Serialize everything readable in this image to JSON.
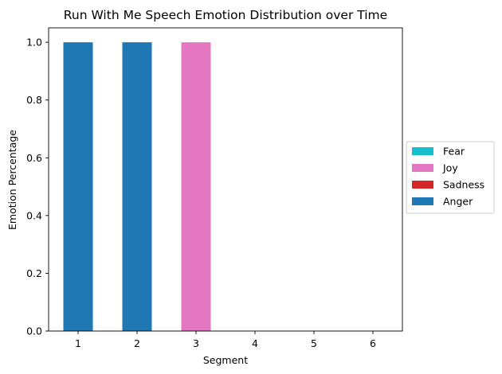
{
  "chart_data": {
    "type": "bar",
    "stacked": true,
    "title": "Run With Me Speech Emotion Distribution over Time",
    "xlabel": "Segment",
    "ylabel": "Emotion Percentage",
    "categories": [
      "1",
      "2",
      "3",
      "4",
      "5",
      "6"
    ],
    "ylim": [
      0,
      1.05
    ],
    "yticks": [
      "0.0",
      "0.2",
      "0.4",
      "0.6",
      "0.8",
      "1.0"
    ],
    "grid": false,
    "legend_position": "right",
    "series": [
      {
        "name": "Anger",
        "color": "#1f77b4",
        "values": [
          1,
          1,
          0,
          0,
          0,
          0
        ]
      },
      {
        "name": "Sadness",
        "color": "#d62728",
        "values": [
          0,
          0,
          0,
          0,
          0,
          0
        ]
      },
      {
        "name": "Joy",
        "color": "#e377c2",
        "values": [
          0,
          0,
          1,
          0,
          0,
          0
        ]
      },
      {
        "name": "Fear",
        "color": "#17becf",
        "values": [
          0,
          0,
          0,
          0,
          0,
          0
        ]
      }
    ],
    "legend_order": [
      "Fear",
      "Joy",
      "Sadness",
      "Anger"
    ]
  }
}
